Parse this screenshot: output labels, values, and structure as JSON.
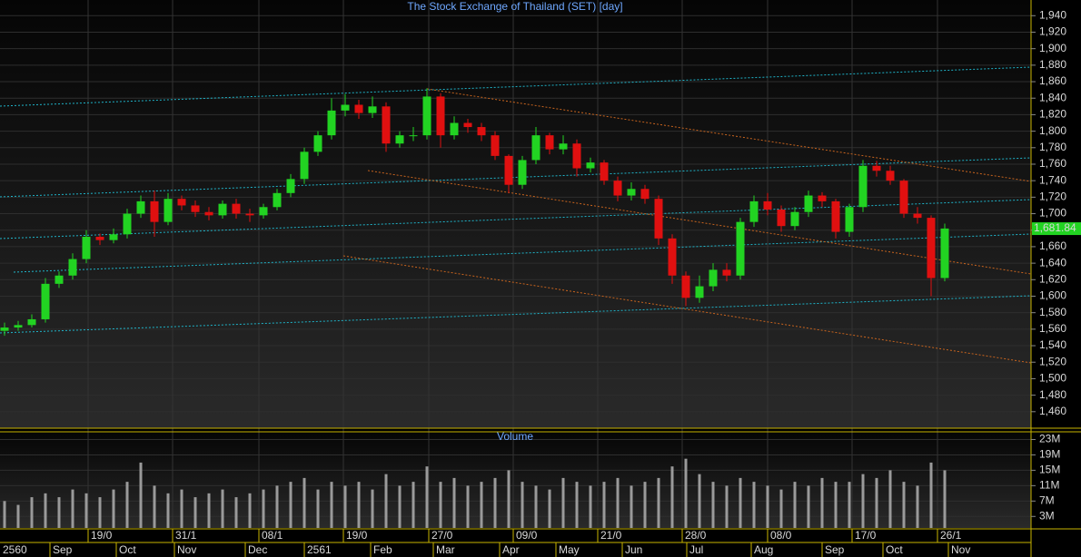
{
  "chart_data": {
    "type": "candlestick",
    "title": "The Stock Exchange of Thailand (SET) [day]",
    "volume_title": "Volume",
    "open": [
      1558,
      1562,
      1565,
      1572,
      1615,
      1625,
      1645,
      1672,
      1668,
      1675,
      1700,
      1715,
      1690,
      1718,
      1710,
      1702,
      1698,
      1712,
      1700,
      1698,
      1708,
      1725,
      1742,
      1775,
      1795,
      1825,
      1832,
      1822,
      1830,
      1785,
      1795,
      1795,
      1842,
      1795,
      1810,
      1805,
      1795,
      1770,
      1735,
      1765,
      1795,
      1778,
      1785,
      1755,
      1762,
      1740,
      1722,
      1730,
      1718,
      1670,
      1625,
      1598,
      1612,
      1632,
      1625,
      1690,
      1715,
      1705,
      1685,
      1702,
      1722,
      1715,
      1678,
      1708,
      1758,
      1752,
      1740,
      1700,
      1695,
      1622
    ],
    "high": [
      1568,
      1570,
      1578,
      1622,
      1630,
      1652,
      1680,
      1676,
      1682,
      1706,
      1722,
      1728,
      1725,
      1722,
      1716,
      1708,
      1716,
      1718,
      1706,
      1712,
      1730,
      1748,
      1780,
      1800,
      1840,
      1845,
      1838,
      1842,
      1835,
      1800,
      1805,
      1852,
      1846,
      1818,
      1815,
      1810,
      1800,
      1772,
      1770,
      1805,
      1798,
      1795,
      1790,
      1768,
      1765,
      1745,
      1738,
      1735,
      1722,
      1675,
      1630,
      1625,
      1640,
      1640,
      1695,
      1722,
      1725,
      1710,
      1708,
      1728,
      1726,
      1718,
      1712,
      1765,
      1764,
      1758,
      1742,
      1708,
      1698,
      1688
    ],
    "low": [
      1552,
      1558,
      1562,
      1568,
      1610,
      1620,
      1640,
      1662,
      1664,
      1670,
      1695,
      1672,
      1686,
      1704,
      1696,
      1692,
      1694,
      1694,
      1690,
      1694,
      1704,
      1720,
      1736,
      1770,
      1790,
      1818,
      1815,
      1816,
      1775,
      1780,
      1788,
      1790,
      1780,
      1790,
      1798,
      1788,
      1765,
      1725,
      1730,
      1760,
      1772,
      1772,
      1745,
      1750,
      1735,
      1715,
      1716,
      1712,
      1662,
      1615,
      1588,
      1592,
      1606,
      1618,
      1620,
      1684,
      1698,
      1678,
      1680,
      1696,
      1708,
      1670,
      1672,
      1702,
      1745,
      1735,
      1695,
      1688,
      1600,
      1618
    ],
    "close": [
      1562,
      1565,
      1572,
      1615,
      1625,
      1645,
      1672,
      1668,
      1675,
      1700,
      1715,
      1690,
      1718,
      1710,
      1702,
      1698,
      1712,
      1700,
      1698,
      1708,
      1725,
      1742,
      1775,
      1795,
      1825,
      1832,
      1822,
      1830,
      1785,
      1795,
      1795,
      1842,
      1795,
      1810,
      1805,
      1795,
      1770,
      1735,
      1765,
      1795,
      1778,
      1785,
      1755,
      1762,
      1740,
      1722,
      1730,
      1718,
      1670,
      1625,
      1598,
      1612,
      1632,
      1625,
      1690,
      1715,
      1705,
      1685,
      1702,
      1722,
      1715,
      1678,
      1708,
      1758,
      1752,
      1740,
      1700,
      1695,
      1622,
      1682
    ],
    "volume": [
      7,
      6,
      8,
      9,
      8,
      10,
      9,
      8,
      10,
      12,
      17,
      11,
      9,
      10,
      8,
      9,
      10,
      8,
      9,
      10,
      11,
      12,
      13,
      10,
      12,
      11,
      12,
      10,
      14,
      11,
      12,
      16,
      12,
      13,
      11,
      12,
      13,
      15,
      12,
      11,
      10,
      13,
      12,
      11,
      12,
      13,
      11,
      12,
      13,
      16,
      18,
      14,
      12,
      11,
      13,
      12,
      11,
      10,
      12,
      11,
      13,
      12,
      12,
      14,
      13,
      15,
      12,
      11,
      17,
      15
    ],
    "up_color": "#22d322",
    "down_color": "#e01010",
    "volume_color": "#9a9a9a",
    "last_price": {
      "value": 1681.84,
      "label": "1,681.84"
    },
    "ylim": [
      1440,
      1959
    ],
    "yticks": [
      {
        "value": 1460,
        "label": "1,460"
      },
      {
        "value": 1480,
        "label": "1,480"
      },
      {
        "value": 1500,
        "label": "1,500"
      },
      {
        "value": 1520,
        "label": "1,520"
      },
      {
        "value": 1540,
        "label": "1,540"
      },
      {
        "value": 1560,
        "label": "1,560"
      },
      {
        "value": 1580,
        "label": "1,580"
      },
      {
        "value": 1600,
        "label": "1,600"
      },
      {
        "value": 1620,
        "label": "1,620"
      },
      {
        "value": 1640,
        "label": "1,640"
      },
      {
        "value": 1660,
        "label": "1,660"
      },
      {
        "value": 1680,
        "label": "1,680"
      },
      {
        "value": 1700,
        "label": "1,700"
      },
      {
        "value": 1720,
        "label": "1,720"
      },
      {
        "value": 1740,
        "label": "1,740"
      },
      {
        "value": 1760,
        "label": "1,760"
      },
      {
        "value": 1780,
        "label": "1,780"
      },
      {
        "value": 1800,
        "label": "1,800"
      },
      {
        "value": 1820,
        "label": "1,820"
      },
      {
        "value": 1840,
        "label": "1,840"
      },
      {
        "value": 1860,
        "label": "1,860"
      },
      {
        "value": 1880,
        "label": "1,880"
      },
      {
        "value": 1900,
        "label": "1,900"
      },
      {
        "value": 1920,
        "label": "1,920"
      },
      {
        "value": 1940,
        "label": "1,940"
      }
    ],
    "y2lim": [
      0,
      25
    ],
    "y2ticks": [
      {
        "value": 3,
        "label": "3M"
      },
      {
        "value": 7,
        "label": "7M"
      },
      {
        "value": 11,
        "label": "11M"
      },
      {
        "value": 15,
        "label": "15M"
      },
      {
        "value": 19,
        "label": "19M"
      },
      {
        "value": 23,
        "label": "23M"
      }
    ],
    "grid": true,
    "date_labels": [
      "19/0",
      "31/1",
      "08/1",
      "19/0",
      "27/0",
      "09/0",
      "21/0",
      "28/0",
      "08/0",
      "17/0",
      "26/1"
    ],
    "month_labels": [
      "2560",
      "Sep",
      "Oct",
      "Nov",
      "Dec",
      "2561",
      "Feb",
      "Mar",
      "Apr",
      "May",
      "Jun",
      "Jul",
      "Aug",
      "Sep",
      "Oct",
      "Nov"
    ]
  }
}
